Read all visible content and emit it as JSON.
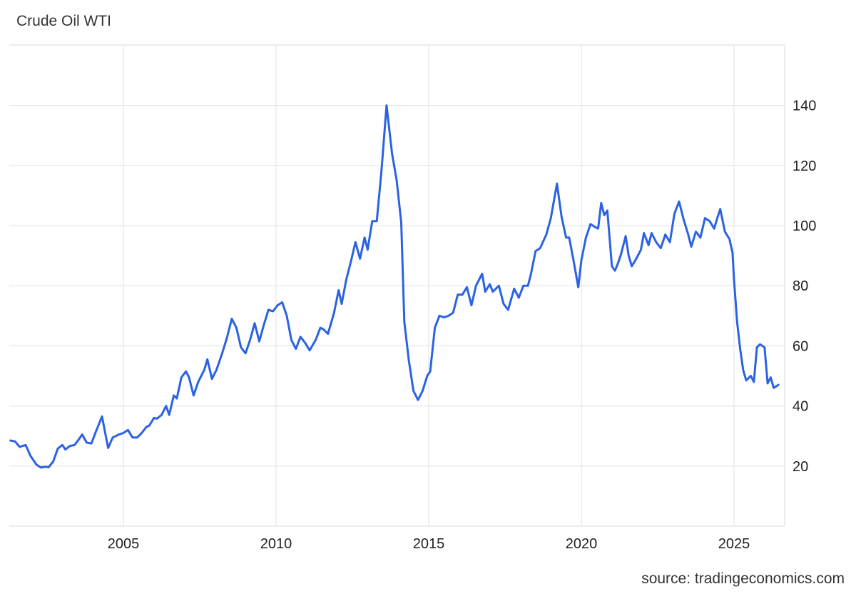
{
  "header": {
    "title": "Crude Oil WTI"
  },
  "footer": {
    "source": "source: tradingeconomics.com"
  },
  "colors": {
    "line": "#2b62e3",
    "grid": "#e6e6e6",
    "text": "#222222"
  },
  "chart_data": {
    "type": "line",
    "title": "Crude Oil WTI",
    "xlabel": "",
    "ylabel": "",
    "xlim": [
      2001.25,
      2026.7
    ],
    "ylim": [
      0,
      155
    ],
    "x_ticks": [
      2005,
      2010,
      2015,
      2020,
      2025
    ],
    "y_ticks": [
      20,
      40,
      60,
      80,
      100,
      120,
      140
    ],
    "y_axis_position": "right",
    "grid": true,
    "legend": null,
    "series": [
      {
        "name": "Crude Oil WTI",
        "points": [
          [
            2001.3,
            28.5
          ],
          [
            2001.45,
            28.2
          ],
          [
            2001.6,
            26.4
          ],
          [
            2001.8,
            27.0
          ],
          [
            2001.95,
            23.5
          ],
          [
            2002.15,
            20.5
          ],
          [
            2002.3,
            19.5
          ],
          [
            2002.45,
            19.8
          ],
          [
            2002.55,
            19.6
          ],
          [
            2002.7,
            21.5
          ],
          [
            2002.85,
            25.8
          ],
          [
            2003.0,
            27.0
          ],
          [
            2003.1,
            25.5
          ],
          [
            2003.25,
            26.7
          ],
          [
            2003.4,
            27.0
          ],
          [
            2003.55,
            29.0
          ],
          [
            2003.65,
            30.5
          ],
          [
            2003.8,
            27.8
          ],
          [
            2003.95,
            27.5
          ],
          [
            2004.1,
            31.5
          ],
          [
            2004.3,
            36.5
          ],
          [
            2004.5,
            26.0
          ],
          [
            2004.65,
            29.5
          ],
          [
            2004.85,
            30.5
          ],
          [
            2005.0,
            31.0
          ],
          [
            2005.15,
            32.0
          ],
          [
            2005.3,
            29.5
          ],
          [
            2005.45,
            29.5
          ],
          [
            2005.6,
            31.0
          ],
          [
            2005.75,
            33.0
          ],
          [
            2005.85,
            33.5
          ],
          [
            2006.0,
            36.0
          ],
          [
            2006.1,
            35.8
          ],
          [
            2006.25,
            37.0
          ],
          [
            2006.4,
            40.0
          ],
          [
            2006.5,
            37.0
          ],
          [
            2006.65,
            43.5
          ],
          [
            2006.75,
            42.5
          ],
          [
            2006.9,
            49.5
          ],
          [
            2007.05,
            51.5
          ],
          [
            2007.15,
            49.5
          ],
          [
            2007.3,
            43.5
          ],
          [
            2007.45,
            48.0
          ],
          [
            2007.65,
            52.0
          ],
          [
            2007.75,
            55.5
          ],
          [
            2007.9,
            49.0
          ],
          [
            2008.05,
            52.0
          ],
          [
            2008.25,
            58.0
          ],
          [
            2008.4,
            63.0
          ],
          [
            2008.55,
            69.0
          ],
          [
            2008.7,
            66.0
          ],
          [
            2008.85,
            59.5
          ],
          [
            2009.0,
            57.5
          ],
          [
            2009.15,
            62.0
          ],
          [
            2009.3,
            67.5
          ],
          [
            2009.45,
            61.5
          ],
          [
            2009.6,
            67.0
          ],
          [
            2009.75,
            72.0
          ],
          [
            2009.9,
            71.5
          ],
          [
            2010.05,
            73.5
          ],
          [
            2010.2,
            74.5
          ],
          [
            2010.35,
            70.0
          ],
          [
            2010.5,
            62.0
          ],
          [
            2010.65,
            59.0
          ],
          [
            2010.8,
            63.0
          ],
          [
            2010.95,
            61.0
          ],
          [
            2011.1,
            58.5
          ],
          [
            2011.3,
            62.0
          ],
          [
            2011.45,
            66.0
          ],
          [
            2011.55,
            65.5
          ],
          [
            2011.7,
            64.0
          ],
          [
            2011.9,
            71.0
          ],
          [
            2012.05,
            78.5
          ],
          [
            2012.15,
            74.0
          ],
          [
            2012.3,
            82.0
          ],
          [
            2012.45,
            88.0
          ],
          [
            2012.6,
            94.5
          ],
          [
            2012.75,
            89.0
          ],
          [
            2012.9,
            96.0
          ],
          [
            2013.0,
            92.0
          ],
          [
            2013.15,
            101.5
          ],
          [
            2013.3,
            101.5
          ],
          [
            2013.45,
            118.0
          ],
          [
            2013.62,
            140.0
          ],
          [
            2013.8,
            124.0
          ],
          [
            2013.95,
            115.0
          ],
          [
            2014.1,
            101.0
          ],
          [
            2014.2,
            68.0
          ],
          [
            2014.35,
            55.0
          ],
          [
            2014.5,
            45.0
          ],
          [
            2014.65,
            42.0
          ],
          [
            2014.8,
            45.0
          ],
          [
            2014.95,
            50.0
          ],
          [
            2015.05,
            51.5
          ],
          [
            2015.2,
            66.0
          ],
          [
            2015.35,
            70.0
          ],
          [
            2015.5,
            69.5
          ],
          [
            2015.65,
            70.0
          ],
          [
            2015.8,
            71.0
          ],
          [
            2015.95,
            77.0
          ],
          [
            2016.1,
            77.0
          ],
          [
            2016.25,
            79.5
          ],
          [
            2016.4,
            73.5
          ],
          [
            2016.55,
            80.0
          ],
          [
            2016.75,
            84.0
          ],
          [
            2016.85,
            78.0
          ],
          [
            2017.0,
            80.5
          ],
          [
            2017.1,
            78.0
          ],
          [
            2017.3,
            80.0
          ],
          [
            2017.45,
            74.0
          ],
          [
            2017.6,
            72.0
          ],
          [
            2017.8,
            79.0
          ],
          [
            2017.95,
            76.0
          ],
          [
            2018.1,
            80.0
          ],
          [
            2018.25,
            80.0
          ],
          [
            2018.35,
            84.0
          ],
          [
            2018.5,
            91.5
          ],
          [
            2018.65,
            92.5
          ],
          [
            2018.85,
            97.0
          ],
          [
            2019.0,
            102.5
          ],
          [
            2019.2,
            114.0
          ],
          [
            2019.35,
            103.0
          ],
          [
            2019.5,
            96.0
          ],
          [
            2019.6,
            96.0
          ],
          [
            2019.75,
            88.0
          ],
          [
            2019.9,
            79.5
          ],
          [
            2020.0,
            88.5
          ],
          [
            2020.15,
            96.0
          ],
          [
            2020.3,
            100.5
          ],
          [
            2020.45,
            99.5
          ],
          [
            2020.55,
            99.0
          ],
          [
            2020.65,
            107.5
          ],
          [
            2020.75,
            103.5
          ],
          [
            2020.85,
            105.0
          ],
          [
            2021.0,
            86.5
          ],
          [
            2021.1,
            85.0
          ],
          [
            2021.2,
            87.5
          ],
          [
            2021.3,
            90.5
          ],
          [
            2021.45,
            96.5
          ],
          [
            2021.55,
            90.0
          ],
          [
            2021.65,
            86.5
          ],
          [
            2021.8,
            89.0
          ],
          [
            2021.95,
            92.0
          ],
          [
            2022.05,
            97.5
          ],
          [
            2022.2,
            93.5
          ],
          [
            2022.3,
            97.5
          ],
          [
            2022.45,
            94.5
          ],
          [
            2022.6,
            92.5
          ],
          [
            2022.75,
            97.0
          ],
          [
            2022.9,
            94.5
          ],
          [
            2023.05,
            104.0
          ],
          [
            2023.2,
            108.0
          ],
          [
            2023.35,
            102.0
          ],
          [
            2023.5,
            97.0
          ],
          [
            2023.6,
            93.0
          ],
          [
            2023.75,
            98.0
          ],
          [
            2023.9,
            96.0
          ],
          [
            2024.05,
            102.5
          ],
          [
            2024.2,
            101.5
          ],
          [
            2024.35,
            99.0
          ],
          [
            2024.45,
            102.5
          ],
          [
            2024.55,
            105.5
          ],
          [
            2024.7,
            98.0
          ],
          [
            2024.85,
            95.5
          ],
          [
            2024.95,
            91.0
          ],
          [
            2025.0,
            82.0
          ],
          [
            2025.1,
            68.0
          ],
          [
            2025.2,
            59.0
          ],
          [
            2025.3,
            52.0
          ],
          [
            2025.4,
            48.5
          ],
          [
            2025.55,
            50.0
          ],
          [
            2025.65,
            48.0
          ],
          [
            2025.75,
            59.5
          ],
          [
            2025.85,
            60.5
          ],
          [
            2026.0,
            59.5
          ],
          [
            2026.1,
            47.5
          ],
          [
            2026.2,
            49.5
          ],
          [
            2026.3,
            46.0
          ],
          [
            2026.45,
            47.0
          ]
        ]
      }
    ]
  }
}
